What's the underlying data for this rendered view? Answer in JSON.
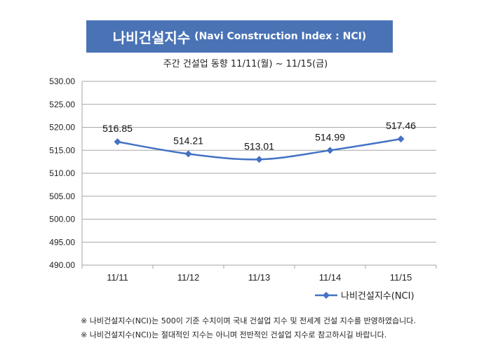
{
  "title": {
    "main": "나비건설지수",
    "sub": "(Navi Construction Index : NCI)"
  },
  "subtitle": "주간 건설업 동향 11/11(월) ~ 11/15(금)",
  "legend": {
    "label": "나비건설지수(NCI)",
    "position": "bottom-right"
  },
  "notes": [
    "※ 나비건설지수(NCI)는 500이 기준 수치이며 국내 건설업 지수 및 전세계 건설 지수를 반영하였습니다.",
    "※ 나비건설지수(NCI)는 절대적인 지수는 아니며 전반적인 건설업 지수로 참고하시길 바랍니다."
  ],
  "colors": {
    "banner": "#4a73b6",
    "series": "#4472c4",
    "grid": "#a6a6a6"
  },
  "chart_data": {
    "type": "line",
    "categories": [
      "11/11",
      "11/12",
      "11/13",
      "11/14",
      "11/15"
    ],
    "series": [
      {
        "name": "나비건설지수(NCI)",
        "values": [
          516.85,
          514.21,
          513.01,
          514.99,
          517.46
        ],
        "labels": [
          "516.85",
          "514.21",
          "513.01",
          "514.99",
          "517.46"
        ]
      }
    ],
    "y_ticks": [
      "530.00",
      "525.00",
      "520.00",
      "515.00",
      "510.00",
      "505.00",
      "500.00",
      "495.00",
      "490.00"
    ],
    "ylim": [
      490,
      530
    ],
    "grid": true,
    "smooth": true,
    "marker": "diamond"
  }
}
